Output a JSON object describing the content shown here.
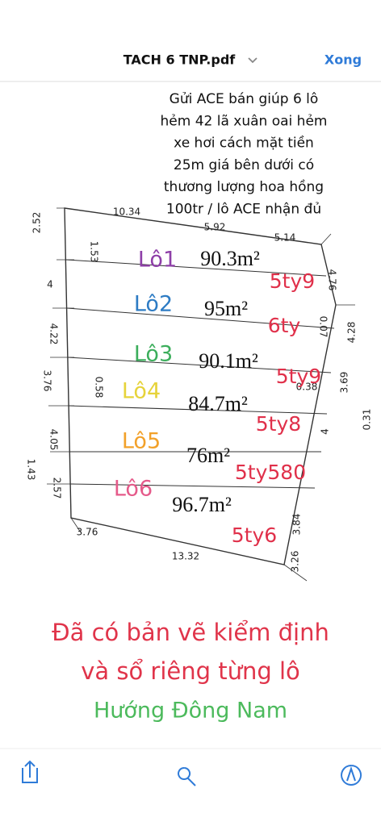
{
  "header": {
    "title": "TACH 6 TNP.pdf",
    "done": "Xong"
  },
  "note": {
    "lines": [
      "Gửi ACE bán giúp 6 lô",
      "hẻm 42 lã xuân oai hẻm",
      "xe hơi cách mặt tiền",
      "25m giá bên dưới  có",
      "thương lượng hoa hồng",
      "100tr / lô ACE nhận đủ"
    ]
  },
  "plan": {
    "dimensions": [
      "10.34",
      "5.92",
      "5.14",
      "2.52",
      "1.53",
      "4.76",
      "4",
      "0.07",
      "4.28",
      "4.22",
      "3.76",
      "0.58",
      "0.38",
      "3.69",
      "0.31",
      "4.05",
      "4",
      "1.43",
      "2.57",
      "3.84",
      "3.76",
      "13.32",
      "3.26"
    ],
    "lots": [
      {
        "label": "Lô1",
        "area": "90.3m²",
        "price": "5ty9"
      },
      {
        "label": "Lô2",
        "area": "95m²",
        "price": "6ty"
      },
      {
        "label": "Lô3",
        "area": "90.1m²",
        "price": "5ty9"
      },
      {
        "label": "Lô4",
        "area": "84.7m²",
        "price": "5ty8"
      },
      {
        "label": "Lô5",
        "area": "76m²",
        "price": "5ty580"
      },
      {
        "label": "Lô6",
        "area": "96.7m²",
        "price": "5ty6"
      }
    ]
  },
  "caption": {
    "lines": [
      "Đã có bản vẽ kiểm định",
      "và sổ riêng từng lô"
    ],
    "direction": "Hướng Đông Nam"
  }
}
